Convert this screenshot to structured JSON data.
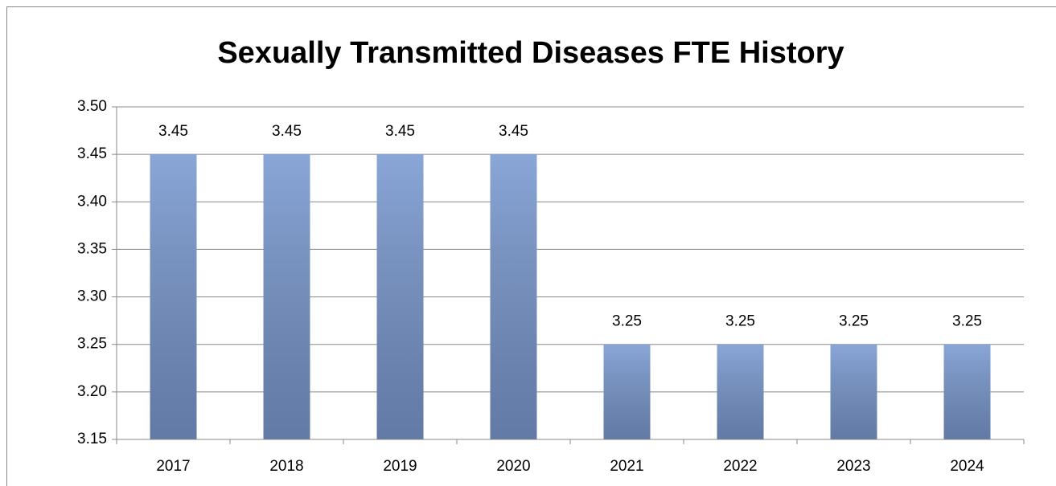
{
  "chart_data": {
    "type": "bar",
    "title": "Sexually Transmitted Diseases FTE History",
    "categories": [
      "2017",
      "2018",
      "2019",
      "2020",
      "2021",
      "2022",
      "2023",
      "2024"
    ],
    "values": [
      3.45,
      3.45,
      3.45,
      3.45,
      3.25,
      3.25,
      3.25,
      3.25
    ],
    "color": "#89a6d8",
    "ylim": [
      3.15,
      3.5
    ],
    "yticks": [
      3.15,
      {
        "value": 3.2,
        "label": "3.20"
      },
      3.25,
      {
        "value": 3.3,
        "label": "3.30"
      },
      3.35,
      {
        "value": 3.4,
        "label": "3.40"
      },
      3.45,
      {
        "value": 3.5,
        "label": "3.50"
      }
    ],
    "grid": true
  }
}
